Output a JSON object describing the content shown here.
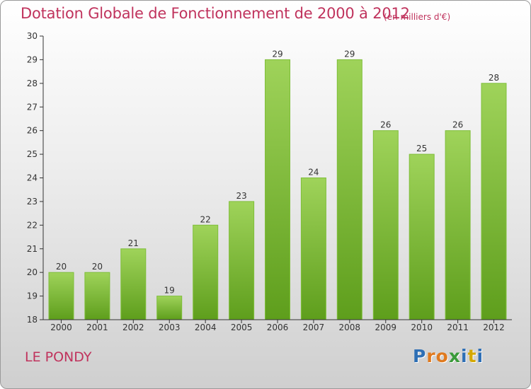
{
  "title": "Dotation Globale de Fonctionnement de 2000 à 2012",
  "subtitle": "(en milliers d'€)",
  "commune": "LE PONDY",
  "brand": {
    "letters": [
      "P",
      "r",
      "o",
      "x",
      "i",
      "t",
      "i"
    ],
    "colors": [
      "#2e6fb5",
      "#e07a1f",
      "#e07a1f",
      "#3a9a3a",
      "#2e6fb5",
      "#d4a800",
      "#2e6fb5"
    ]
  },
  "colors": {
    "accent": "#c0335d",
    "bar_top": "#9fd35a",
    "bar_bottom": "#5e9e1c",
    "axis": "#333333"
  },
  "chart_data": {
    "type": "bar",
    "title": "",
    "xlabel": "",
    "ylabel": "",
    "categories": [
      "2000",
      "2001",
      "2002",
      "2003",
      "2004",
      "2005",
      "2006",
      "2007",
      "2008",
      "2009",
      "2010",
      "2011",
      "2012"
    ],
    "values": [
      20,
      20,
      21,
      19,
      22,
      23,
      29,
      24,
      29,
      26,
      25,
      26,
      28
    ],
    "ylim": [
      18,
      30
    ],
    "yticks": [
      18,
      19,
      20,
      21,
      22,
      23,
      24,
      25,
      26,
      27,
      28,
      29,
      30
    ],
    "grid": false,
    "legend": "none"
  }
}
